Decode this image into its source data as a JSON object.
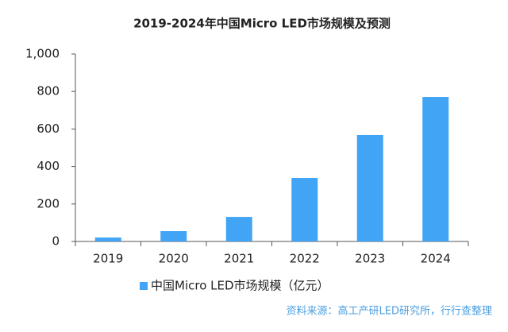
{
  "chart_data": {
    "type": "bar",
    "title": "2019-2024年中国Micro LED市场规模及预测",
    "categories": [
      "2019",
      "2020",
      "2021",
      "2022",
      "2023",
      "2024"
    ],
    "series": [
      {
        "name": "中国Micro LED市场规模（亿元）",
        "color": "#41a4f5",
        "values": [
          21,
          55,
          131,
          339,
          568,
          771
        ]
      }
    ],
    "ylim": [
      0,
      1000
    ],
    "yticks": [
      0,
      200,
      400,
      600,
      800,
      {
        "value": 1000,
        "label": "1,000"
      }
    ],
    "grid": false,
    "legend": "bottom",
    "source": "资料来源：高工产研LED研究所，行行查整理"
  }
}
